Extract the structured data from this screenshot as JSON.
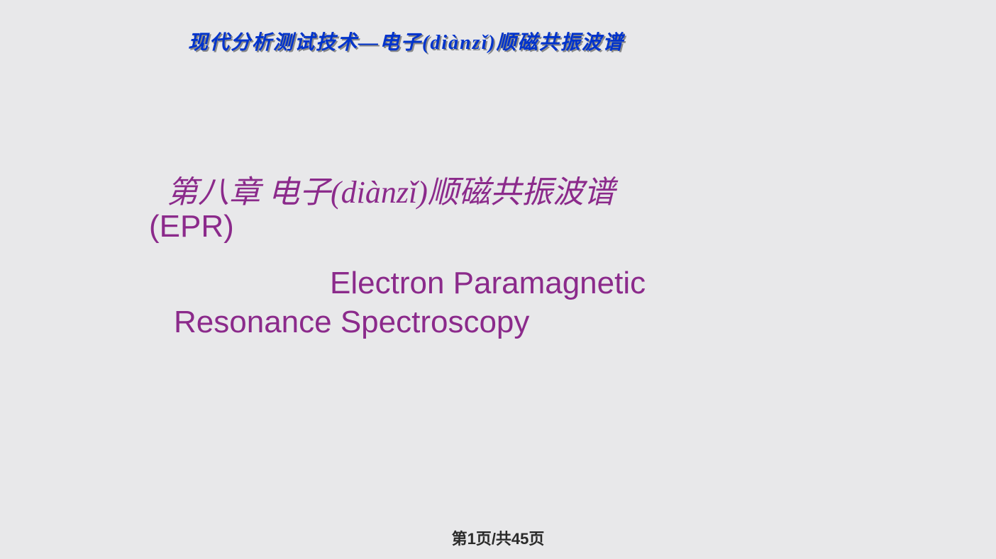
{
  "header": {
    "text": "现代分析测试技术—电子(diànzǐ)顺磁共振波谱",
    "color": "#0033cc",
    "shadow_color": "#888888",
    "fontsize": 28
  },
  "title": {
    "line1": "第八章   电子(diànzǐ)顺磁共振波谱",
    "line2": "(EPR)",
    "color": "#8b2a8b",
    "fontsize": 44
  },
  "subtitle": {
    "line1": "Electron Paramagnetic",
    "line2": "Resonance Spectroscopy",
    "color": "#8b2a8b",
    "fontsize": 44
  },
  "footer": {
    "page_text": "第1页/共45页",
    "color": "#2a2a2a",
    "fontsize": 22
  },
  "background_color": "#e8e8ea"
}
